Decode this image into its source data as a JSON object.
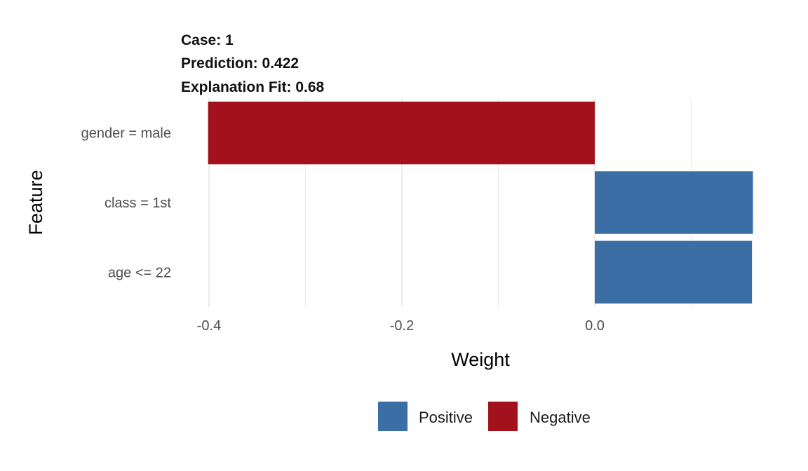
{
  "header": {
    "case": "Case: 1",
    "prediction": "Prediction: 0.422",
    "fit": "Explanation Fit: 0.68"
  },
  "chart_data": {
    "type": "bar",
    "orientation": "horizontal",
    "title": "",
    "xlabel": "Weight",
    "ylabel": "Feature",
    "categories": [
      "gender = male",
      "class = 1st",
      "age <= 22"
    ],
    "values": [
      -0.401,
      0.164,
      0.163
    ],
    "sign": [
      "Negative",
      "Positive",
      "Positive"
    ],
    "xlim": [
      -0.405,
      0.165
    ],
    "xticks": [
      -0.4,
      -0.2,
      0.0
    ],
    "xtick_labels": [
      "-0.4",
      "-0.2",
      "0.0"
    ],
    "grid": true,
    "legend": {
      "placement": "bottom",
      "entries": [
        {
          "label": "Positive",
          "color": "#3a6ea5"
        },
        {
          "label": "Negative",
          "color": "#a3121c"
        }
      ]
    },
    "colors": {
      "Positive": "#3a6ea5",
      "Negative": "#a3121c"
    }
  }
}
